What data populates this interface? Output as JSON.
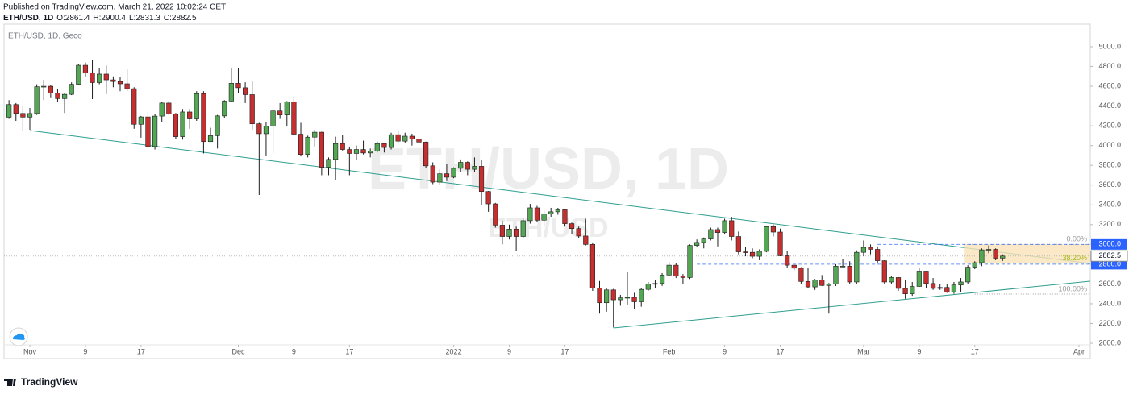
{
  "header": {
    "published": "Published on TradingView.com, March 21, 2022 10:02:24 CET",
    "symbol": "ETH/USD, 1D",
    "ohlc_prefixes": [
      "O:",
      "H:",
      "L:",
      "C:"
    ]
  },
  "footer": {
    "brand": "TradingView"
  },
  "chart_data": {
    "type": "candlestick",
    "symbol_label": "ETH/USD, 1D, Geco",
    "watermark": "ETH/USD, 1D",
    "watermark_small": "ETH/USD",
    "up_color": "#53a653",
    "down_color": "#c62f2f",
    "border_color": "#1e1e1e",
    "categories": [
      null,
      null,
      null,
      "Nov",
      null,
      null,
      null,
      null,
      null,
      null,
      null,
      "9",
      null,
      null,
      null,
      null,
      null,
      null,
      null,
      "17",
      null,
      null,
      null,
      null,
      null,
      null,
      null,
      null,
      null,
      null,
      null,
      null,
      null,
      "Dec",
      null,
      null,
      null,
      null,
      null,
      null,
      null,
      "9",
      null,
      null,
      null,
      null,
      null,
      null,
      null,
      "17",
      null,
      null,
      null,
      null,
      null,
      null,
      null,
      null,
      null,
      null,
      null,
      null,
      null,
      null,
      "2022",
      null,
      null,
      null,
      null,
      null,
      null,
      null,
      "9",
      null,
      null,
      null,
      null,
      null,
      null,
      null,
      "17",
      null,
      null,
      null,
      null,
      null,
      null,
      null,
      null,
      null,
      null,
      null,
      null,
      null,
      null,
      "Feb",
      null,
      null,
      null,
      null,
      null,
      null,
      null,
      "9",
      null,
      null,
      null,
      null,
      null,
      null,
      null,
      "17",
      null,
      null,
      null,
      null,
      null,
      null,
      null,
      null,
      null,
      null,
      null,
      "Mar",
      null,
      null,
      null,
      null,
      null,
      null,
      null,
      "9",
      null,
      null,
      null,
      null,
      null,
      null,
      null,
      "17",
      null,
      null,
      null,
      null,
      null,
      null,
      null,
      null,
      null,
      null,
      null,
      null,
      null,
      null,
      "Apr",
      null
    ],
    "open": [
      4287,
      4415,
      4325,
      4288,
      4324,
      4595,
      4600,
      4530,
      4475,
      4518,
      4620,
      4812,
      4735,
      4637,
      4723,
      4665,
      4648,
      4625,
      4575,
      4215,
      4290,
      3990,
      4298,
      4430,
      4320,
      4090,
      4340,
      4270,
      4525,
      4040,
      4100,
      4300,
      4450,
      4630,
      4585,
      4515,
      4220,
      4120,
      4195,
      4350,
      4310,
      4440,
      4115,
      3910,
      4085,
      4135,
      3780,
      3860,
      4020,
      3960,
      3920,
      3960,
      3925,
      3945,
      4020,
      3980,
      4110,
      4045,
      4095,
      4065,
      4035,
      3795,
      3630,
      3715,
      3680,
      3770,
      3830,
      3760,
      3790,
      3535,
      3410,
      3195,
      3080,
      3155,
      3080,
      3240,
      3370,
      3245,
      3310,
      3330,
      3350,
      3210,
      3160,
      3085,
      3000,
      2560,
      2410,
      2540,
      2440,
      2460,
      2465,
      2420,
      2545,
      2600,
      2605,
      2690,
      2790,
      2680,
      2665,
      2990,
      3020,
      3055,
      3150,
      3120,
      3240,
      3080,
      2925,
      2920,
      2880,
      2930,
      3180,
      3125,
      2885,
      2790,
      2760,
      2625,
      2570,
      2640,
      2585,
      2600,
      2780,
      2780,
      2620,
      2920,
      2970,
      2950,
      2835,
      2620,
      2665,
      2555,
      2500,
      2575,
      2730,
      2605,
      2555,
      2565,
      2520,
      2590,
      2620,
      2770,
      2815,
      2945,
      2950,
      2861.4,
      null,
      null,
      null,
      null,
      null,
      null,
      null,
      null,
      null,
      null,
      null,
      null
    ],
    "high": [
      4460,
      4430,
      4400,
      4380,
      4620,
      4665,
      4610,
      4570,
      4530,
      4640,
      4825,
      4840,
      4868,
      4780,
      4810,
      4700,
      4690,
      4770,
      4590,
      4300,
      4340,
      4320,
      4440,
      4450,
      4330,
      4370,
      4370,
      4550,
      4550,
      4180,
      4310,
      4460,
      4780,
      4780,
      4640,
      4650,
      4230,
      4240,
      4360,
      4430,
      4450,
      4490,
      4230,
      4100,
      4160,
      4140,
      3880,
      4090,
      4110,
      3990,
      4000,
      4050,
      3970,
      4040,
      4030,
      4130,
      4150,
      4130,
      4120,
      4130,
      4040,
      3830,
      3760,
      3810,
      3780,
      3860,
      3840,
      3880,
      3850,
      3540,
      3420,
      3240,
      3200,
      3180,
      3270,
      3410,
      3390,
      3340,
      3370,
      3370,
      3360,
      3220,
      3180,
      3260,
      3020,
      2630,
      2560,
      2550,
      2490,
      2720,
      2510,
      2560,
      2620,
      2640,
      2710,
      2820,
      2810,
      2700,
      3000,
      3050,
      3070,
      3170,
      3170,
      3260,
      3280,
      3130,
      2970,
      2960,
      2950,
      3190,
      3200,
      3160,
      2930,
      2790,
      2770,
      2760,
      2650,
      2690,
      2610,
      2800,
      2850,
      2830,
      2940,
      3040,
      3000,
      2980,
      2840,
      2680,
      2670,
      2640,
      2620,
      2760,
      2730,
      2660,
      2600,
      2600,
      2620,
      2660,
      2790,
      2830,
      2960,
      2990,
      2960,
      2900.4,
      null,
      null,
      null,
      null,
      null,
      null,
      null,
      null,
      null,
      null,
      null,
      null
    ],
    "low": [
      4270,
      4250,
      4150,
      4160,
      4310,
      4460,
      4480,
      4440,
      4330,
      4510,
      4610,
      4700,
      4470,
      4620,
      4520,
      4590,
      4550,
      4550,
      4170,
      4080,
      3970,
      3960,
      4240,
      4310,
      4070,
      4060,
      4170,
      4250,
      3920,
      4040,
      3970,
      4280,
      4440,
      4530,
      4430,
      4160,
      3500,
      3900,
      3920,
      4270,
      4200,
      4100,
      3890,
      3880,
      3990,
      3700,
      3700,
      3650,
      3950,
      3700,
      3850,
      3910,
      3880,
      3930,
      3930,
      3960,
      4030,
      4030,
      4000,
      4030,
      3770,
      3610,
      3600,
      3640,
      3670,
      3730,
      3700,
      3730,
      3400,
      3330,
      3170,
      3000,
      3050,
      2930,
      3060,
      3210,
      3230,
      3190,
      3280,
      3300,
      3180,
      3100,
      3060,
      2990,
      2530,
      2300,
      2320,
      2160,
      2380,
      2390,
      2350,
      2370,
      2530,
      2560,
      2580,
      2680,
      2660,
      2600,
      2650,
      2970,
      2960,
      3040,
      2980,
      3100,
      3040,
      2900,
      2880,
      2860,
      2840,
      2920,
      3080,
      2880,
      2760,
      2740,
      2600,
      2560,
      2540,
      2580,
      2300,
      2580,
      2770,
      2600,
      2600,
      2880,
      2900,
      2810,
      2600,
      2600,
      2530,
      2450,
      2480,
      2570,
      2560,
      2540,
      2540,
      2510,
      2500,
      2520,
      2600,
      2750,
      2780,
      2910,
      2840,
      2831.3,
      null,
      null,
      null,
      null,
      null,
      null,
      null,
      null,
      null,
      null,
      null,
      null
    ],
    "close": [
      4415,
      4325,
      4288,
      4324,
      4595,
      4600,
      4530,
      4475,
      4518,
      4620,
      4812,
      4735,
      4637,
      4723,
      4665,
      4648,
      4625,
      4575,
      4215,
      4290,
      3990,
      4298,
      4430,
      4320,
      4090,
      4340,
      4270,
      4525,
      4040,
      4100,
      4300,
      4450,
      4630,
      4585,
      4515,
      4220,
      4120,
      4195,
      4350,
      4310,
      4440,
      4115,
      3910,
      4085,
      4135,
      3780,
      3860,
      4020,
      3960,
      3920,
      3960,
      3925,
      3945,
      4020,
      3980,
      4110,
      4045,
      4095,
      4065,
      4035,
      3795,
      3630,
      3715,
      3680,
      3770,
      3830,
      3760,
      3790,
      3535,
      3410,
      3195,
      3080,
      3155,
      3080,
      3240,
      3370,
      3245,
      3310,
      3330,
      3350,
      3210,
      3160,
      3085,
      3000,
      2560,
      2410,
      2540,
      2440,
      2460,
      2465,
      2420,
      2545,
      2600,
      2605,
      2690,
      2790,
      2680,
      2665,
      2990,
      3020,
      3055,
      3150,
      3120,
      3240,
      3080,
      2925,
      2920,
      2880,
      2930,
      3180,
      3125,
      2885,
      2790,
      2760,
      2625,
      2570,
      2640,
      2585,
      2600,
      2780,
      2780,
      2620,
      2920,
      2970,
      2950,
      2835,
      2620,
      2665,
      2555,
      2500,
      2575,
      2730,
      2605,
      2555,
      2565,
      2520,
      2590,
      2620,
      2770,
      2815,
      2945,
      2950,
      2860,
      2882.5,
      null,
      null,
      null,
      null,
      null,
      null,
      null,
      null,
      null,
      null,
      null,
      null
    ],
    "ylim": [
      1984,
      5228
    ],
    "yticks": [
      {
        "value": 2000,
        "label": "2000.0"
      },
      {
        "value": 2200,
        "label": "2200.0"
      },
      {
        "value": 2400,
        "label": "2400.0"
      },
      {
        "value": 2600,
        "label": "2600.0"
      },
      {
        "value": 2800,
        "label": "2800.0"
      },
      {
        "value": 3000,
        "label": "3000.0"
      },
      {
        "value": 3200,
        "label": "3200.0"
      },
      {
        "value": 3400,
        "label": "3400.0"
      },
      {
        "value": 3600,
        "label": "3600.0"
      },
      {
        "value": 3800,
        "label": "3800.0"
      },
      {
        "value": 4000,
        "label": "4000.0"
      },
      {
        "value": 4200,
        "label": "4200.0"
      },
      {
        "value": 4400,
        "label": "4400.0"
      },
      {
        "value": 4600,
        "label": "4600.0"
      },
      {
        "value": 4800,
        "label": "4800.0"
      },
      {
        "value": 5000,
        "label": "5000.0"
      }
    ],
    "levels": [
      {
        "value": 3000,
        "label": "3000.0",
        "color": "#2962ff"
      },
      {
        "value": 2800,
        "label": "2800.0",
        "color": "#2962ff"
      }
    ],
    "fib": [
      {
        "label": "0.00%",
        "price": 3000,
        "color": "#9a9a9a"
      },
      {
        "label": "38.20%",
        "price": 2809,
        "color": "#a4b814"
      },
      {
        "label": "100.00%",
        "price": 2497,
        "color": "#9a9a9a"
      }
    ],
    "fib_fill": "#f9e2b8",
    "trendlines": [
      {
        "start": 4152,
        "end": 2807,
        "color": "#2e9e8f"
      },
      {
        "start": 2155,
        "end": 2628,
        "color": "#2e9e8f"
      }
    ]
  }
}
